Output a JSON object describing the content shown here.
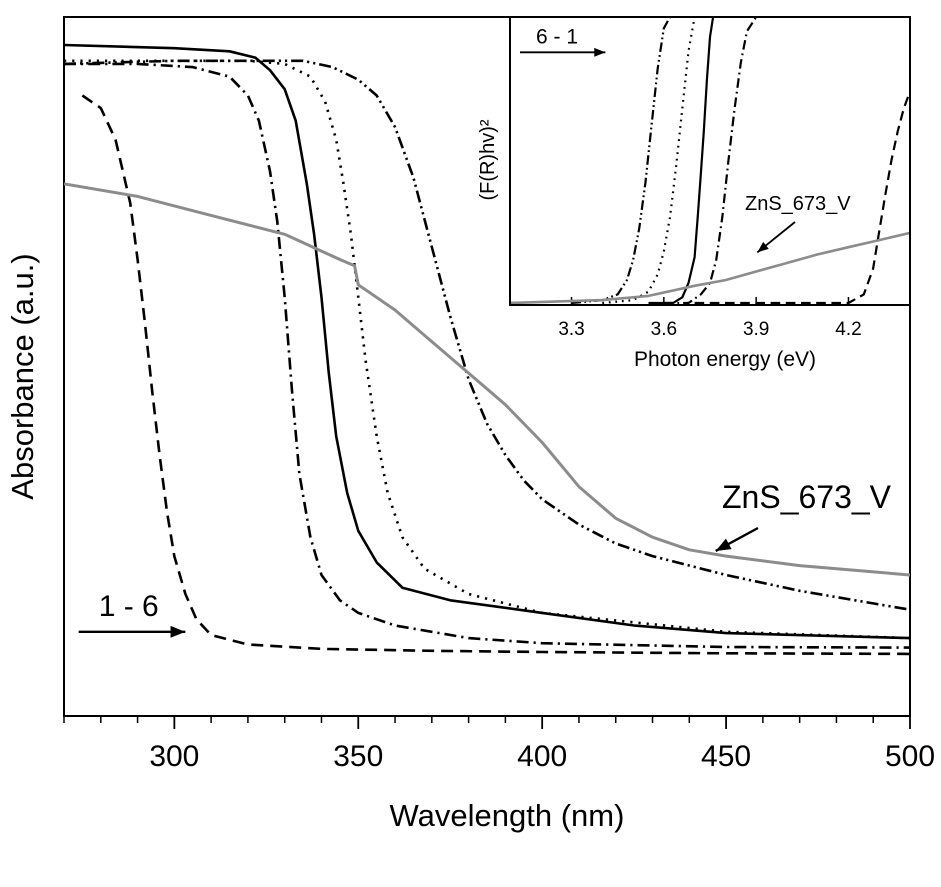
{
  "chart_data": [
    {
      "type": "line",
      "xlabel": "Wavelength (nm)",
      "ylabel": "Absorbance (a.u.)",
      "xlim": [
        270,
        500
      ],
      "ylim": [
        0,
        1
      ],
      "xticks": [
        300,
        350,
        400,
        450,
        500
      ],
      "x_minor_step": 10,
      "yticks": [],
      "grid": false,
      "annotations": [
        {
          "text": "1 - 6",
          "type": "arrow",
          "direction": "right",
          "x_from": 274,
          "x_to": 303,
          "y": 0.07
        },
        {
          "text": "ZnS_673_V",
          "type": "arrow",
          "target_x": 445,
          "target_y": 0.195
        }
      ],
      "series": [
        {
          "style": "dash",
          "color": "#000000",
          "points": [
            [
              275,
              0.92
            ],
            [
              280,
              0.9
            ],
            [
              284,
              0.85
            ],
            [
              288,
              0.75
            ],
            [
              290,
              0.66
            ],
            [
              292,
              0.56
            ],
            [
              294,
              0.45
            ],
            [
              296,
              0.35
            ],
            [
              298,
              0.26
            ],
            [
              300,
              0.19
            ],
            [
              303,
              0.13
            ],
            [
              306,
              0.09
            ],
            [
              310,
              0.065
            ],
            [
              320,
              0.05
            ],
            [
              340,
              0.043
            ],
            [
              370,
              0.04
            ],
            [
              400,
              0.038
            ],
            [
              450,
              0.036
            ],
            [
              500,
              0.035
            ]
          ]
        },
        {
          "style": "dashdot",
          "color": "#000000",
          "points": [
            [
              270,
              0.97
            ],
            [
              290,
              0.97
            ],
            [
              305,
              0.965
            ],
            [
              315,
              0.95
            ],
            [
              320,
              0.92
            ],
            [
              323,
              0.88
            ],
            [
              326,
              0.8
            ],
            [
              328,
              0.72
            ],
            [
              330,
              0.6
            ],
            [
              332,
              0.45
            ],
            [
              334,
              0.32
            ],
            [
              337,
              0.22
            ],
            [
              340,
              0.16
            ],
            [
              345,
              0.12
            ],
            [
              350,
              0.1
            ],
            [
              360,
              0.08
            ],
            [
              380,
              0.06
            ],
            [
              400,
              0.052
            ],
            [
              450,
              0.046
            ],
            [
              500,
              0.045
            ]
          ]
        },
        {
          "style": "solid",
          "color": "#000000",
          "points": [
            [
              270,
              1.0
            ],
            [
              300,
              0.995
            ],
            [
              315,
              0.99
            ],
            [
              322,
              0.98
            ],
            [
              326,
              0.96
            ],
            [
              330,
              0.93
            ],
            [
              333,
              0.88
            ],
            [
              336,
              0.78
            ],
            [
              338,
              0.7
            ],
            [
              340,
              0.6
            ],
            [
              342,
              0.48
            ],
            [
              344,
              0.38
            ],
            [
              347,
              0.29
            ],
            [
              350,
              0.23
            ],
            [
              355,
              0.18
            ],
            [
              362,
              0.14
            ],
            [
              375,
              0.12
            ],
            [
              400,
              0.1
            ],
            [
              425,
              0.08
            ],
            [
              450,
              0.068
            ],
            [
              500,
              0.06
            ]
          ]
        },
        {
          "style": "dot",
          "color": "#000000",
          "points": [
            [
              270,
              0.975
            ],
            [
              300,
              0.975
            ],
            [
              320,
              0.975
            ],
            [
              330,
              0.97
            ],
            [
              337,
              0.95
            ],
            [
              341,
              0.91
            ],
            [
              344,
              0.85
            ],
            [
              346,
              0.78
            ],
            [
              348,
              0.7
            ],
            [
              350,
              0.6
            ],
            [
              352,
              0.5
            ],
            [
              355,
              0.38
            ],
            [
              358,
              0.29
            ],
            [
              362,
              0.22
            ],
            [
              368,
              0.17
            ],
            [
              380,
              0.13
            ],
            [
              400,
              0.1
            ],
            [
              450,
              0.07
            ],
            [
              500,
              0.06
            ]
          ]
        },
        {
          "style": "dashdotdot",
          "color": "#000000",
          "points": [
            [
              270,
              0.97
            ],
            [
              300,
              0.975
            ],
            [
              320,
              0.975
            ],
            [
              335,
              0.975
            ],
            [
              343,
              0.965
            ],
            [
              350,
              0.945
            ],
            [
              355,
              0.92
            ],
            [
              360,
              0.87
            ],
            [
              365,
              0.79
            ],
            [
              370,
              0.68
            ],
            [
              375,
              0.57
            ],
            [
              380,
              0.47
            ],
            [
              385,
              0.4
            ],
            [
              390,
              0.35
            ],
            [
              395,
              0.31
            ],
            [
              400,
              0.28
            ],
            [
              410,
              0.24
            ],
            [
              420,
              0.21
            ],
            [
              430,
              0.19
            ],
            [
              450,
              0.16
            ],
            [
              470,
              0.135
            ],
            [
              490,
              0.115
            ],
            [
              500,
              0.105
            ]
          ]
        },
        {
          "name": "ZnS_673_V",
          "style": "solid",
          "color": "#8c8c8c",
          "points": [
            [
              270,
              0.78
            ],
            [
              290,
              0.76
            ],
            [
              310,
              0.73
            ],
            [
              330,
              0.7
            ],
            [
              345,
              0.66
            ],
            [
              349,
              0.65
            ],
            [
              350,
              0.62
            ],
            [
              360,
              0.58
            ],
            [
              370,
              0.53
            ],
            [
              380,
              0.48
            ],
            [
              390,
              0.43
            ],
            [
              400,
              0.37
            ],
            [
              410,
              0.3
            ],
            [
              420,
              0.25
            ],
            [
              430,
              0.22
            ],
            [
              440,
              0.2
            ],
            [
              450,
              0.19
            ],
            [
              470,
              0.175
            ],
            [
              500,
              0.16
            ]
          ]
        }
      ]
    },
    {
      "type": "line",
      "xlabel": "Photon energy (eV)",
      "ylabel": "(F(R)hv)²",
      "xlim": [
        3.1,
        4.4
      ],
      "ylim": [
        0,
        1
      ],
      "xticks": [
        "3.3",
        "3.6",
        "3.9",
        "4.2"
      ],
      "grid": false,
      "annotations": [
        {
          "text": "6 - 1",
          "type": "arrow",
          "direction": "right",
          "x_from": 3.1,
          "x_to": 3.41,
          "y": 0.88
        },
        {
          "text": "ZnS_673_V",
          "type": "arrow",
          "target_x": 3.92,
          "target_y": 0.17
        }
      ],
      "series": [
        {
          "style": "dashdotdot",
          "color": "#000000",
          "points": [
            [
              3.3,
              0.0
            ],
            [
              3.4,
              0.01
            ],
            [
              3.45,
              0.03
            ],
            [
              3.48,
              0.08
            ],
            [
              3.5,
              0.15
            ],
            [
              3.52,
              0.26
            ],
            [
              3.54,
              0.42
            ],
            [
              3.56,
              0.62
            ],
            [
              3.58,
              0.82
            ],
            [
              3.6,
              0.96
            ],
            [
              3.62,
              1.0
            ]
          ]
        },
        {
          "style": "dot",
          "color": "#000000",
          "points": [
            [
              3.4,
              0.0
            ],
            [
              3.5,
              0.01
            ],
            [
              3.55,
              0.04
            ],
            [
              3.58,
              0.1
            ],
            [
              3.6,
              0.18
            ],
            [
              3.62,
              0.3
            ],
            [
              3.64,
              0.48
            ],
            [
              3.66,
              0.68
            ],
            [
              3.68,
              0.88
            ],
            [
              3.7,
              1.0
            ]
          ]
        },
        {
          "style": "solid",
          "color": "#000000",
          "points": [
            [
              3.55,
              0.0
            ],
            [
              3.63,
              0.0
            ],
            [
              3.66,
              0.02
            ],
            [
              3.68,
              0.07
            ],
            [
              3.7,
              0.16
            ],
            [
              3.71,
              0.3
            ],
            [
              3.72,
              0.45
            ],
            [
              3.73,
              0.6
            ],
            [
              3.74,
              0.78
            ],
            [
              3.75,
              0.93
            ],
            [
              3.76,
              1.0
            ]
          ]
        },
        {
          "style": "dashdot",
          "color": "#000000",
          "points": [
            [
              3.6,
              0.0
            ],
            [
              3.68,
              0.0
            ],
            [
              3.72,
              0.03
            ],
            [
              3.75,
              0.07
            ],
            [
              3.77,
              0.15
            ],
            [
              3.79,
              0.3
            ],
            [
              3.81,
              0.5
            ],
            [
              3.83,
              0.68
            ],
            [
              3.85,
              0.84
            ],
            [
              3.87,
              0.95
            ],
            [
              3.9,
              1.0
            ]
          ]
        },
        {
          "style": "dash",
          "color": "#000000",
          "points": [
            [
              3.7,
              0.0
            ],
            [
              3.9,
              0.0
            ],
            [
              4.1,
              0.0
            ],
            [
              4.2,
              0.0
            ],
            [
              4.25,
              0.03
            ],
            [
              4.28,
              0.12
            ],
            [
              4.3,
              0.25
            ],
            [
              4.32,
              0.38
            ],
            [
              4.34,
              0.5
            ],
            [
              4.36,
              0.6
            ],
            [
              4.38,
              0.68
            ],
            [
              4.4,
              0.74
            ]
          ]
        },
        {
          "name": "ZnS_673_V",
          "style": "solid",
          "color": "#8c8c8c",
          "points": [
            [
              3.1,
              0.0
            ],
            [
              3.4,
              0.01
            ],
            [
              3.55,
              0.025
            ],
            [
              3.7,
              0.06
            ],
            [
              3.8,
              0.08
            ],
            [
              3.9,
              0.11
            ],
            [
              4.0,
              0.14
            ],
            [
              4.1,
              0.17
            ],
            [
              4.2,
              0.195
            ],
            [
              4.3,
              0.22
            ],
            [
              4.4,
              0.245
            ]
          ]
        }
      ]
    }
  ]
}
